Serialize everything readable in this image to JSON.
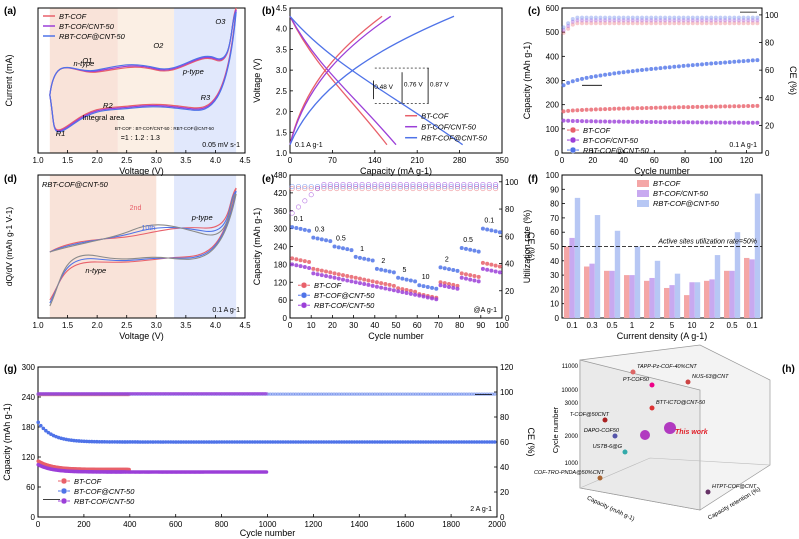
{
  "colors": {
    "red": "#e8606a",
    "purple": "#9b3fd8",
    "blue": "#4f73e8",
    "pinkfill": "#f7dcd0",
    "bluefill": "#d9e2fb",
    "redbar": "#f4a6a6",
    "purplebar": "#c8a9f0",
    "bluebar": "#b7c7f4"
  },
  "chart_data": [
    {
      "panel": "a",
      "type": "line",
      "xlabel": "Voltage (V)",
      "ylabel": "Current (mA)",
      "xlim": [
        1.0,
        4.5
      ],
      "ylim": [
        -0.3,
        0.45
      ],
      "xticks": [
        "1.0",
        "1.5",
        "2.0",
        "2.5",
        "3.0",
        "3.5",
        "4.0",
        "4.5"
      ],
      "legend": [
        "BT-COF",
        "BT-COF/CNT-50",
        "RBT-COF@CNT-50"
      ],
      "annotations": {
        "n": "n-type",
        "p": "p-type",
        "o1": "O1",
        "o2": "O2",
        "o3": "O3",
        "r1": "R1",
        "r2": "R2",
        "r3": "R3",
        "integral": "Integral area",
        "ratio_labels": "BT-COF : BT-COF/CNT-50 : RBT-COF@CNT-50",
        "ratio": "=1 : 1.2 : 1.3",
        "rate": "0.05 mV s-1"
      }
    },
    {
      "panel": "b",
      "type": "line",
      "xlabel": "Capacity (mA g-1)",
      "ylabel": "Voltage (V)",
      "xlim": [
        0,
        350
      ],
      "ylim": [
        1.0,
        4.5
      ],
      "xticks": [
        "0",
        "70",
        "140",
        "210",
        "280",
        "350"
      ],
      "yticks": [
        "1.0",
        "1.5",
        "2.0",
        "2.5",
        "3.0",
        "3.5",
        "4.0",
        "4.5"
      ],
      "legend": [
        "BT-COF",
        "BT-COF/CNT-50",
        "RBT-COF@CNT-50"
      ],
      "series": [
        {
          "name": "BT-COF",
          "capacity": 160
        },
        {
          "name": "BT-COF/CNT-50",
          "capacity": 175
        },
        {
          "name": "RBT-COF@CNT-50",
          "capacity": 285
        }
      ],
      "annotations": {
        "gap1": "0.48 V",
        "gap2": "0.76 V",
        "gap3": "0.87 V",
        "rate": "0.1 A g-1"
      }
    },
    {
      "panel": "c",
      "type": "scatter",
      "xlabel": "Cycle number",
      "ylabel": "Capacity (mAh g-1)",
      "y2label": "CE (%)",
      "xlim": [
        0,
        130
      ],
      "ylim": [
        0,
        600
      ],
      "y2lim": [
        0,
        105
      ],
      "xticks": [
        "0",
        "20",
        "40",
        "60",
        "80",
        "100",
        "120"
      ],
      "yticks": [
        "0",
        "100",
        "200",
        "300",
        "400",
        "500",
        "600"
      ],
      "y2ticks": [
        "0",
        "20",
        "40",
        "60",
        "80",
        "100"
      ],
      "legend": [
        "BT-COF",
        "BT-COF/CNT-50",
        "RBT-COF@CNT-50"
      ],
      "series": [
        {
          "name": "BT-COF",
          "start": 170,
          "end": 195
        },
        {
          "name": "BT-COF/CNT-50",
          "start": 135,
          "end": 125
        },
        {
          "name": "RBT-COF@CNT-50",
          "start": 270,
          "end": 385
        }
      ],
      "annotations": {
        "rate": "0.1 A g-1"
      }
    },
    {
      "panel": "d",
      "type": "line",
      "xlabel": "Voltage (V)",
      "ylabel": "dQ/dV (mAh g-1 V-1)",
      "xlim": [
        1.0,
        4.5
      ],
      "xticks": [
        "1.0",
        "1.5",
        "2.0",
        "2.5",
        "3.0",
        "3.5",
        "4.0",
        "4.5"
      ],
      "annotations": {
        "title": "RBT-COF@CNT-50",
        "n": "n-type",
        "p": "p-type",
        "c2": "2nd",
        "c10": "10th",
        "rate": "0.1 A g-1"
      }
    },
    {
      "panel": "e",
      "type": "scatter",
      "xlabel": "Cycle number",
      "ylabel": "Capacity (mAh g-1)",
      "y2label": "CE (%)",
      "xlim": [
        0,
        100
      ],
      "ylim": [
        0,
        480
      ],
      "y2lim": [
        0,
        105
      ],
      "xticks": [
        "0",
        "10",
        "20",
        "30",
        "40",
        "50",
        "60",
        "70",
        "80",
        "90",
        "100"
      ],
      "yticks": [
        "0",
        "60",
        "120",
        "180",
        "240",
        "300",
        "360",
        "420",
        "480"
      ],
      "y2ticks": [
        "0",
        "20",
        "40",
        "60",
        "80",
        "100"
      ],
      "legend": [
        "BT-COF",
        "BT-COF@CNT-50",
        "RBT-COF/CNT-50"
      ],
      "rates": [
        "0.1",
        "0.3",
        "0.5",
        "1",
        "2",
        "5",
        "10",
        "2",
        "0.5",
        "0.1"
      ],
      "series": [
        {
          "name": "BT-COF",
          "values": [
            200,
            165,
            150,
            135,
            120,
            100,
            80,
            120,
            150,
            185
          ]
        },
        {
          "name": "BT-COF@CNT-50",
          "values": [
            305,
            270,
            240,
            205,
            165,
            135,
            110,
            170,
            235,
            300
          ]
        },
        {
          "name": "RBT-COF/CNT-50",
          "values": [
            180,
            150,
            135,
            120,
            105,
            90,
            75,
            110,
            135,
            165
          ]
        }
      ],
      "annotations": {
        "unit": "@A g-1"
      }
    },
    {
      "panel": "f",
      "type": "bar",
      "xlabel": "Current density (A g-1)",
      "ylabel": "Utilization rate (%)",
      "ylim": [
        0,
        100
      ],
      "categories": [
        "0.1",
        "0.3",
        "0.5",
        "1",
        "2",
        "5",
        "10",
        "2",
        "0.5",
        "0.1"
      ],
      "yticks": [
        "0",
        "10",
        "20",
        "30",
        "40",
        "50",
        "60",
        "70",
        "80",
        "90",
        "100"
      ],
      "series": [
        {
          "name": "BT-COF",
          "values": [
            50,
            36,
            33,
            30,
            26,
            21,
            16,
            26,
            33,
            42
          ]
        },
        {
          "name": "BT-COF/CNT-50",
          "values": [
            56,
            38,
            33,
            30,
            28,
            23,
            25,
            27,
            33,
            41
          ]
        },
        {
          "name": "RBT-COF@CNT-50",
          "values": [
            84,
            72,
            61,
            50,
            40,
            31,
            25,
            44,
            60,
            87
          ]
        }
      ],
      "annotations": {
        "line": "Active sites utilization rate=50%"
      }
    },
    {
      "panel": "g",
      "type": "scatter",
      "xlabel": "Cycle number",
      "ylabel": "Capacity (mAh g-1)",
      "y2label": "CE (%)",
      "xlim": [
        0,
        2000
      ],
      "ylim": [
        0,
        300
      ],
      "y2lim": [
        0,
        120
      ],
      "xticks": [
        "0",
        "200",
        "400",
        "600",
        "800",
        "1000",
        "1200",
        "1400",
        "1600",
        "1800",
        "2000"
      ],
      "yticks": [
        "0",
        "60",
        "120",
        "180",
        "240",
        "300"
      ],
      "y2ticks": [
        "0",
        "20",
        "40",
        "60",
        "80",
        "100",
        "120"
      ],
      "legend": [
        "BT-COF",
        "BT-COF@CNT-50",
        "RBT-COF/CNT-50"
      ],
      "series": [
        {
          "name": "BT-COF",
          "cycles": 400,
          "capacity": 95
        },
        {
          "name": "BT-COF@CNT-50",
          "cycles": 2000,
          "capacity": 150
        },
        {
          "name": "RBT-COF/CNT-50",
          "cycles": 1000,
          "capacity": 90
        }
      ],
      "annotations": {
        "rate": "2 A g-1"
      }
    },
    {
      "panel": "h",
      "type": "scatter",
      "zlabel": "Cycle number",
      "xlabel": "Capacity (mAh g-1)",
      "ylabel": "Capacity retention (%)",
      "zticks": [
        "1000",
        "2000",
        "3000",
        "10000",
        "11000"
      ],
      "points": [
        "TAPP-Pz-COF-40%CNT",
        "PT-COF50",
        "NUS-63@CNT",
        "BTT-ICTO@CNT-50",
        "T-COF@50CNT",
        "DAPO-COF50",
        "USTB-6@G",
        "COF-TRO-PNDA@50%CNT",
        "HTPT-COF@CNT",
        "This work"
      ]
    }
  ],
  "labels": {
    "a": "(a)",
    "b": "(b)",
    "c": "(c)",
    "d": "(d)",
    "e": "(e)",
    "f": "(f)",
    "g": "(g)",
    "h": "(h)"
  }
}
